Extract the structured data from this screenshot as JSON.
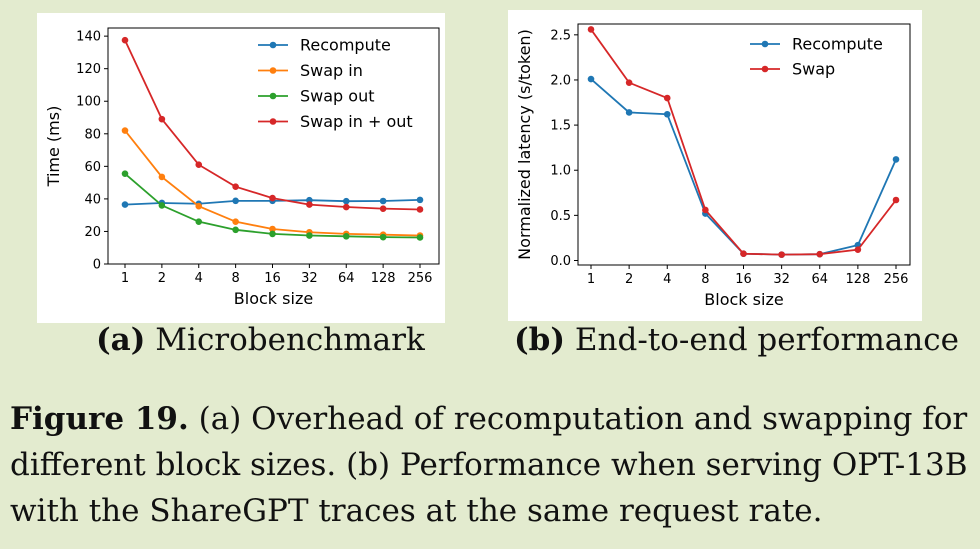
{
  "caption": {
    "label": "Figure 19.",
    "text": " (a) Overhead of recomputation and swapping for different block sizes. (b) Performance when serving OPT-13B with the ShareGPT traces at the same request rate."
  },
  "subfigures": [
    {
      "tag": "(a)",
      "title": "Microbenchmark"
    },
    {
      "tag": "(b)",
      "title": "End-to-end performance"
    }
  ],
  "chart_data": [
    {
      "type": "line",
      "xlabel": "Block size",
      "ylabel": "Time (ms)",
      "x": [
        "1",
        "2",
        "4",
        "8",
        "16",
        "32",
        "64",
        "128",
        "256"
      ],
      "ylim": [
        0,
        145
      ],
      "yticks": [
        0,
        20,
        40,
        60,
        80,
        100,
        120,
        140
      ],
      "legend_position": "top-right",
      "series": [
        {
          "name": "Recompute",
          "color": "#1f77b4",
          "values": [
            36.5,
            37.5,
            37,
            38.8,
            38.8,
            39.2,
            38.6,
            38.7,
            39.4
          ]
        },
        {
          "name": "Swap in",
          "color": "#ff7f0e",
          "values": [
            82,
            53.5,
            35.5,
            26,
            21.5,
            19.5,
            18.5,
            18,
            17.5
          ]
        },
        {
          "name": "Swap out",
          "color": "#2ca02c",
          "values": [
            55.5,
            36,
            26,
            21,
            18.5,
            17.5,
            17,
            16.5,
            16.3
          ]
        },
        {
          "name": "Swap in + out",
          "color": "#d62728",
          "values": [
            137.5,
            89,
            61,
            47.5,
            40.5,
            36.5,
            35,
            34,
            33.5
          ]
        }
      ]
    },
    {
      "type": "line",
      "xlabel": "Block size",
      "ylabel": "Normalized latency (s/token)",
      "x": [
        "1",
        "2",
        "4",
        "8",
        "16",
        "32",
        "64",
        "128",
        "256"
      ],
      "ylim": [
        -0.05,
        2.62
      ],
      "yticks": [
        "0.0",
        "0.5",
        "1.0",
        "1.5",
        "2.0",
        "2.5"
      ],
      "legend_position": "top-right",
      "series": [
        {
          "name": "Recompute",
          "color": "#1f77b4",
          "values": [
            2.01,
            1.64,
            1.62,
            0.52,
            0.075,
            0.065,
            0.07,
            0.17,
            1.12
          ]
        },
        {
          "name": "Swap",
          "color": "#d62728",
          "values": [
            2.56,
            1.97,
            1.8,
            0.56,
            0.075,
            0.065,
            0.07,
            0.12,
            0.67
          ]
        }
      ]
    }
  ]
}
